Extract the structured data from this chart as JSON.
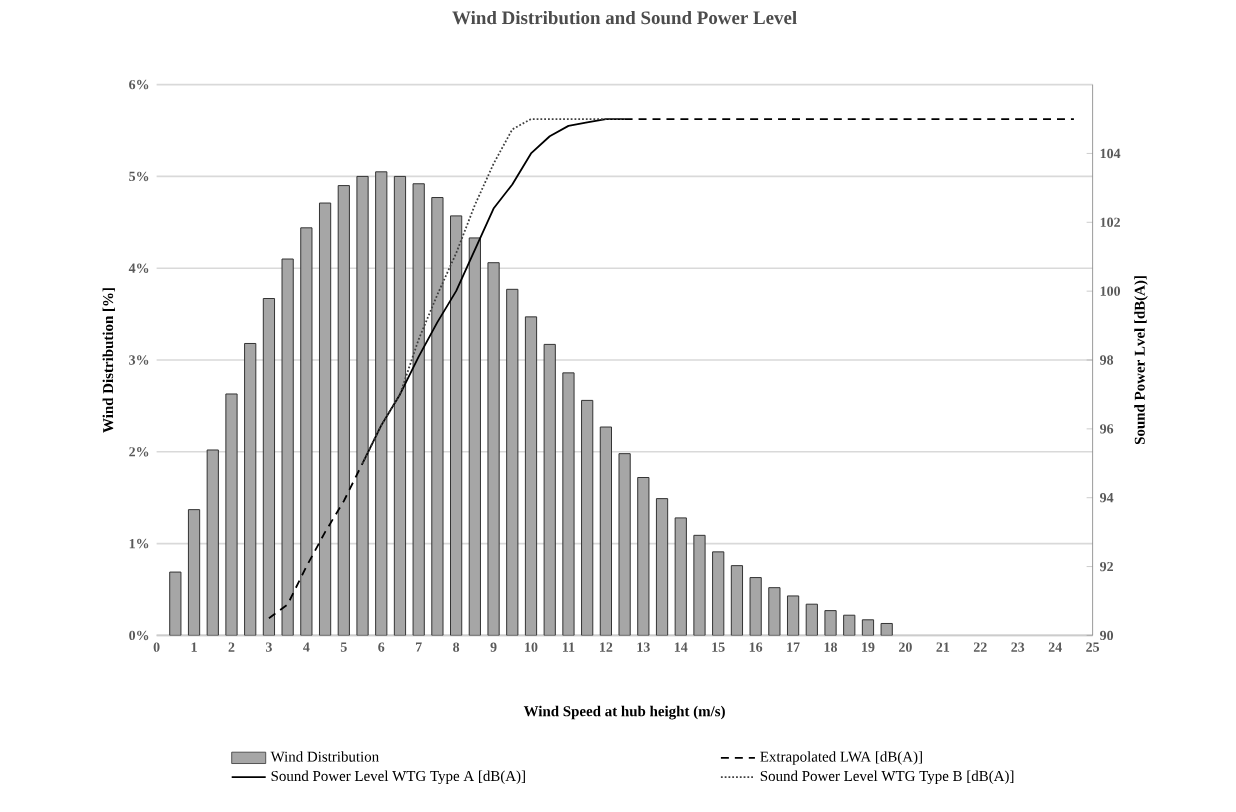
{
  "chart_data": {
    "type": "bar",
    "title": "Wind Distribution and Sound Power Level",
    "xlabel": "Wind Speed at hub height (m/s)",
    "ylabel": "Wind Distribution [%]",
    "y2label": "Sound Power Lvel [dB(A)]",
    "xlim": [
      0,
      25
    ],
    "xticks": [
      0,
      1,
      2,
      3,
      4,
      5,
      6,
      7,
      8,
      9,
      10,
      11,
      12,
      13,
      14,
      15,
      16,
      17,
      18,
      19,
      20,
      21,
      22,
      23,
      24,
      25
    ],
    "ylim": [
      0,
      6
    ],
    "yticks": [
      {
        "value": 0,
        "label": "0%"
      },
      {
        "value": 1,
        "label": "1%"
      },
      {
        "value": 2,
        "label": "2%"
      },
      {
        "value": 3,
        "label": "3%"
      },
      {
        "value": 4,
        "label": "4%"
      },
      {
        "value": 5,
        "label": "5%"
      },
      {
        "value": 6,
        "label": "6%"
      }
    ],
    "y2lim": [
      90,
      106
    ],
    "y2ticks": [
      90,
      92,
      94,
      96,
      98,
      100,
      102,
      104
    ],
    "grid": "y",
    "legend": "bottom",
    "series": [
      {
        "name": "Wind Distribution",
        "color": "#a6a6a6",
        "x": [
          0.5,
          1,
          1.5,
          2,
          2.5,
          3,
          3.5,
          4,
          4.5,
          5,
          5.5,
          6,
          6.5,
          7,
          7.5,
          8,
          8.5,
          9,
          9.5,
          10,
          10.5,
          11,
          11.5,
          12,
          12.5,
          13,
          13.5,
          14,
          14.5,
          15,
          15.5,
          16,
          16.5,
          17,
          17.5,
          18,
          18.5,
          19,
          19.5
        ],
        "values": [
          0.69,
          1.37,
          2.02,
          2.63,
          3.18,
          3.67,
          4.1,
          4.44,
          4.71,
          4.9,
          5.0,
          5.05,
          5.0,
          4.92,
          4.77,
          4.57,
          4.33,
          4.06,
          3.77,
          3.47,
          3.17,
          2.86,
          2.56,
          2.27,
          1.98,
          1.72,
          1.49,
          1.28,
          1.09,
          0.91,
          0.76,
          0.63,
          0.52,
          0.43,
          0.34,
          0.27,
          0.22,
          0.17,
          0.13
        ]
      },
      {
        "name": "Extrapolated LWA [dB(A)]",
        "type": "line",
        "axis": "y2",
        "color": "#000000",
        "line_style": "dashed",
        "x": [
          3,
          3.5,
          4,
          4.5,
          5,
          5.5,
          9,
          12.5,
          24.5
        ],
        "values": [
          90.5,
          90.9,
          92.0,
          93.0,
          93.9,
          95.0,
          null,
          105,
          105
        ]
      },
      {
        "name": "Sound Power Level WTG Type A [dB(A)]",
        "type": "line",
        "axis": "y2",
        "color": "#000000",
        "line_style": "solid",
        "x": [
          5.5,
          6,
          6.5,
          7,
          7.5,
          8,
          8.5,
          9,
          9.5,
          10,
          10.5,
          11,
          11.5,
          12,
          12.5
        ],
        "values": [
          95.0,
          96.1,
          97.0,
          98.1,
          99.1,
          100.0,
          101.2,
          102.4,
          103.1,
          104.0,
          104.5,
          104.8,
          104.9,
          105,
          105
        ]
      },
      {
        "name": "Sound Power Level WTG Type B [dB(A)]",
        "type": "line",
        "axis": "y2",
        "color": "#404040",
        "line_style": "dotted",
        "x": [
          5.5,
          6,
          6.5,
          7,
          7.5,
          8,
          8.5,
          9,
          9.5,
          10,
          10.5,
          11,
          11.5,
          12,
          12.5
        ],
        "values": [
          95.0,
          96.1,
          97.0,
          98.6,
          99.9,
          101.1,
          102.5,
          103.7,
          104.7,
          105,
          105,
          105,
          105,
          105,
          105
        ]
      }
    ]
  }
}
